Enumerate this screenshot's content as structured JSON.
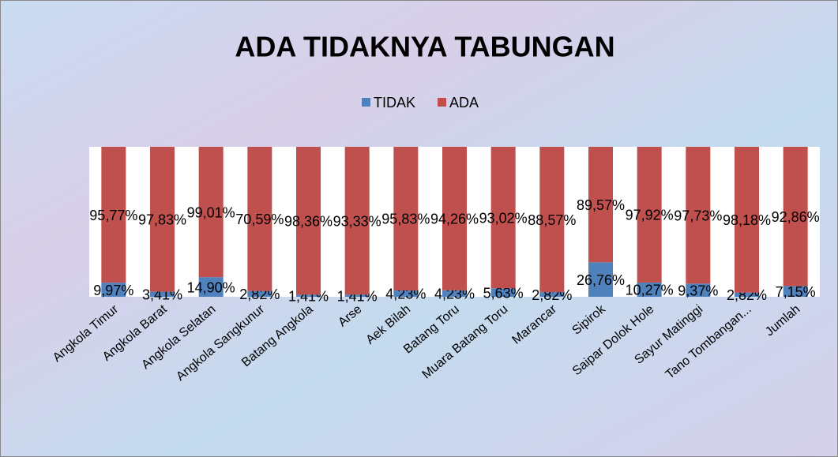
{
  "chart_data": {
    "type": "bar",
    "stacked": "percent",
    "title": "ADA TIDAKNYA TABUNGAN",
    "categories": [
      "Angkola Timur",
      "Angkola Barat",
      "Angkola Selatan",
      "Angkola Sangkunur",
      "Batang Angkola",
      "Arse",
      "Aek Bilah",
      "Batang Toru",
      "Muara Batang Toru",
      "Marancar",
      "Sipirok",
      "Saipar Dolok Hole",
      "Sayur Matinggi",
      "Tano Tombangan...",
      "Jumlah"
    ],
    "series": [
      {
        "name": "TIDAK",
        "color": "#4f81bd",
        "values": [
          9.97,
          3.41,
          14.9,
          2.82,
          1.41,
          1.41,
          4.23,
          4.23,
          5.63,
          2.82,
          26.76,
          10.27,
          9.37,
          2.82,
          7.15
        ],
        "value_labels": [
          "9,97%",
          "3,41%",
          "14,90%",
          "2,82%",
          "1,41%",
          "1,41%",
          "4,23%",
          "4,23%",
          "5,63%",
          "2,82%",
          "26,76%",
          "10,27%",
          "9,37%",
          "2,82%",
          "7,15%"
        ]
      },
      {
        "name": "ADA",
        "color": "#c0504d",
        "values": [
          95.77,
          97.83,
          99.01,
          70.59,
          98.36,
          93.33,
          95.83,
          94.26,
          93.02,
          88.57,
          89.57,
          97.92,
          97.73,
          98.18,
          92.86
        ],
        "value_labels": [
          "95,77%",
          "97,83%",
          "99,01%",
          "70,59%",
          "98,36%",
          "93,33%",
          "95,83%",
          "94,26%",
          "93,02%",
          "88,57%",
          "89,57%",
          "97,92%",
          "97,73%",
          "98,18%",
          "92,86%"
        ]
      }
    ],
    "legend": "top"
  }
}
